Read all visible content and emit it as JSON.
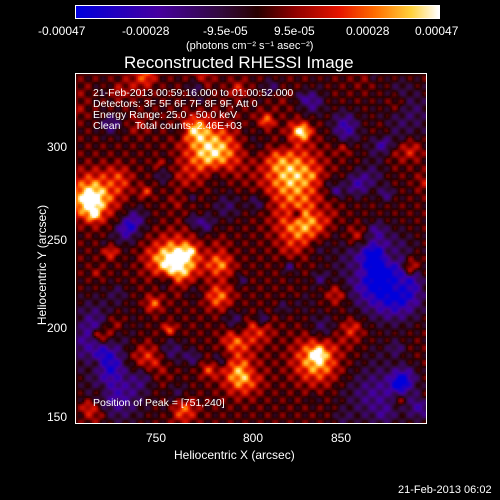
{
  "colorbar": {
    "tick_labels": [
      "-0.00047",
      "-0.00028",
      "-9.5e-05",
      "9.5e-05",
      "0.00028",
      "0.00047"
    ],
    "unit_label": "(photons cm⁻² s⁻¹ asec⁻²)",
    "colormap": "blue-purple-red-orange-yellow-white (RHESSI standard)"
  },
  "image": {
    "title": "Reconstructed RHESSI Image",
    "info_lines": [
      "21-Feb-2013 00:59:16.000 to 01:00:52.000",
      "Detectors: 3F 5F 6F 7F 8F 9F, Att 0",
      "Energy Range: 25.0 - 50.0 keV",
      "Clean     Total counts: 2.46E+03"
    ],
    "peak_label": "Position of Peak = [751,240]",
    "peak": [
      751,
      240
    ]
  },
  "axes": {
    "xlabel": "Heliocentric X (arcsec)",
    "ylabel": "Heliocentric Y (arcsec)",
    "xticks": [
      "750",
      "800",
      "850"
    ],
    "yticks": [
      "150",
      "200",
      "250",
      "300"
    ],
    "xlim": [
      705,
      895
    ],
    "ylim": [
      145,
      335
    ]
  },
  "footer": {
    "timestamp": "21-Feb-2013 06:02"
  }
}
